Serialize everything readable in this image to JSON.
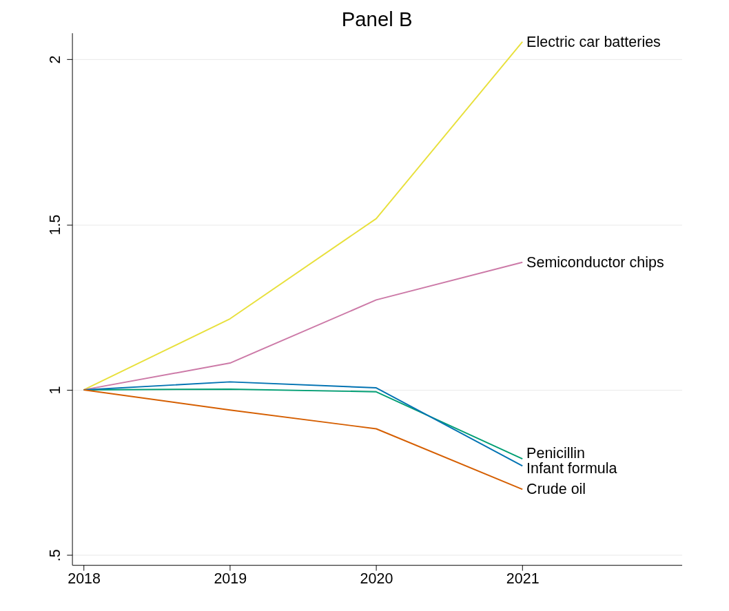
{
  "chart_data": {
    "type": "line",
    "title": "Panel B",
    "x": [
      2018,
      2019,
      2020,
      2021
    ],
    "series": [
      {
        "name": "Electric car batteries",
        "color": "#e8e03c",
        "values": [
          1,
          1.215,
          1.518,
          2.053
        ]
      },
      {
        "name": "Semiconductor chips",
        "color": "#cc79a7",
        "values": [
          1,
          1.081,
          1.272,
          1.386
        ]
      },
      {
        "name": "Penicillin",
        "color": "#009e73",
        "values": [
          1,
          1.002,
          0.994,
          0.791
        ]
      },
      {
        "name": "Infant formula",
        "color": "#0072b2",
        "values": [
          1,
          1.024,
          1.006,
          0.77
        ]
      },
      {
        "name": "Crude oil",
        "color": "#d55e00",
        "values": [
          1,
          0.939,
          0.882,
          0.699
        ]
      }
    ],
    "xlim": [
      2017.92,
      2022.09
    ],
    "xticks": [
      2018,
      2019,
      2020,
      2021
    ],
    "ylim": [
      0.47,
      2.08
    ],
    "yticks": [
      {
        "value": 0.5,
        "label": ".5"
      },
      1,
      1.5,
      2
    ],
    "grid": "y",
    "legend": false,
    "marker": "none",
    "line_style": "solid"
  }
}
